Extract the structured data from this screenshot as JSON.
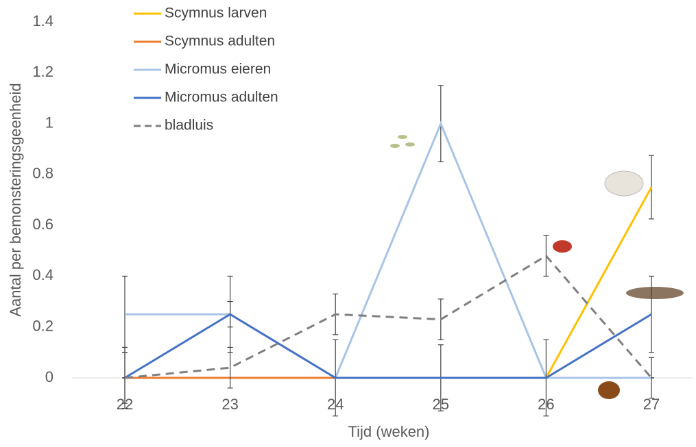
{
  "chart_data": {
    "type": "line",
    "x_label": "Tijd (weken)",
    "y_label": "Aantal per bemonsteringsgeenheid",
    "categories": [
      "22",
      "23",
      "24",
      "25",
      "26",
      "27"
    ],
    "ylim": [
      0,
      1.4
    ],
    "yticks": [
      0,
      0.2,
      0.4,
      0.6,
      0.8,
      1,
      1.2,
      1.4
    ],
    "series": [
      {
        "name": "Scymnus larven",
        "color": "#ffc000",
        "dash": false,
        "values": [
          0,
          0,
          0,
          0,
          0,
          0.75
        ],
        "errors": [
          0,
          0,
          0,
          0,
          0,
          0.125
        ]
      },
      {
        "name": "Scymnus adulten",
        "color": "#ed7d31",
        "dash": false,
        "values": [
          0,
          0,
          0,
          0,
          0,
          0
        ],
        "errors": [
          0,
          0,
          0,
          0,
          0,
          0
        ]
      },
      {
        "name": "Micromus eieren",
        "color": "#a9c4e6",
        "dash": false,
        "values": [
          0.25,
          0.25,
          0,
          1,
          0,
          0
        ],
        "errors": [
          0.15,
          0.05,
          0,
          0.15,
          0,
          0
        ]
      },
      {
        "name": "Micromus adulten",
        "color": "#4472c4",
        "dash": false,
        "values": [
          0,
          0.25,
          0,
          0,
          0,
          0.25
        ],
        "errors": [
          0.1,
          0.15,
          0.15,
          0.13,
          0.15,
          0.15
        ]
      },
      {
        "name": "bladluis",
        "color": "#7f7f7f",
        "dash": true,
        "values": [
          0,
          0.04,
          0.25,
          0.23,
          0.48,
          0
        ],
        "errors": [
          0.12,
          0.08,
          0.08,
          0.08,
          0.08,
          0.08
        ]
      }
    ]
  }
}
